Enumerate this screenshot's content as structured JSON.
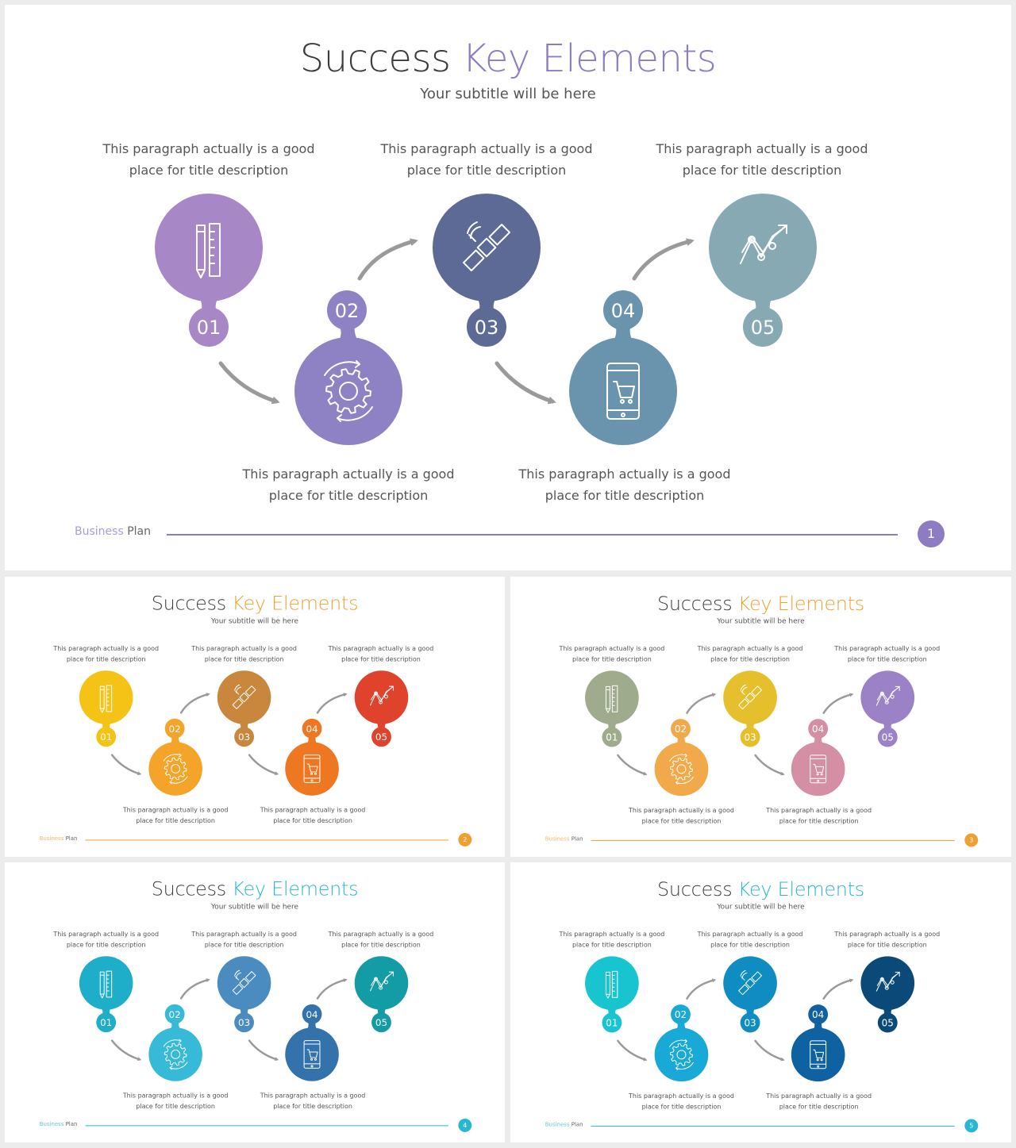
{
  "slides": [
    {
      "title_main": "Success",
      "title_accent": "Key Elements",
      "subtitle": "Your subtitle will be here",
      "accent": "#8e7cc3",
      "colors": [
        "#a887c7",
        "#8f82c4",
        "#5c6a95",
        "#6a93ad",
        "#86a9b3"
      ],
      "footer_brand_a": "Business",
      "footer_brand_b": "Plan",
      "page_number": "1"
    },
    {
      "title_main": "Success",
      "title_accent": "Key Elements",
      "subtitle": "Your subtitle will be here",
      "accent": "#f0a030",
      "colors": [
        "#f5c316",
        "#f4a428",
        "#c9873d",
        "#ee7722",
        "#e0432c"
      ],
      "footer_brand_a": "Business",
      "footer_brand_b": "Plan",
      "page_number": "2"
    },
    {
      "title_main": "Success",
      "title_accent": "Key Elements",
      "subtitle": "Your subtitle will be here",
      "accent": "#f0a030",
      "colors": [
        "#9eab8c",
        "#f2a94a",
        "#e6c02c",
        "#d48fa5",
        "#9b81c6"
      ],
      "footer_brand_a": "Business",
      "footer_brand_b": "Plan",
      "page_number": "3"
    },
    {
      "title_main": "Success",
      "title_accent": "Key Elements",
      "subtitle": "Your subtitle will be here",
      "accent": "#29b6d3",
      "colors": [
        "#1eaec9",
        "#36bad8",
        "#4a8cc0",
        "#3472ab",
        "#139ba6"
      ],
      "footer_brand_a": "Business",
      "footer_brand_b": "Plan",
      "page_number": "4"
    },
    {
      "title_main": "Success",
      "title_accent": "Key Elements",
      "subtitle": "Your subtitle will be here",
      "accent": "#29b6d3",
      "colors": [
        "#17c4d0",
        "#19a9d6",
        "#0f8cc1",
        "#0f62a1",
        "#0b4a78"
      ],
      "footer_brand_a": "Business",
      "footer_brand_b": "Plan",
      "page_number": "5"
    }
  ],
  "steps": [
    {
      "number": "01",
      "icon": "pencil-ruler-icon"
    },
    {
      "number": "02",
      "icon": "gear-cycle-icon"
    },
    {
      "number": "03",
      "icon": "satellite-icon"
    },
    {
      "number": "04",
      "icon": "mobile-cart-icon"
    },
    {
      "number": "05",
      "icon": "trend-chart-icon"
    }
  ],
  "paragraphs": [
    {
      "line1": "This paragraph actually is a good",
      "line2": "place for title description"
    },
    {
      "line1": "This paragraph actually is a good",
      "line2": "place for title description"
    },
    {
      "line1": "This paragraph actually is a good",
      "line2": "place for title description"
    },
    {
      "line1": "This paragraph actually is a good",
      "line2": "place for title description"
    },
    {
      "line1": "This paragraph actually is a good",
      "line2": "place for title description"
    }
  ]
}
